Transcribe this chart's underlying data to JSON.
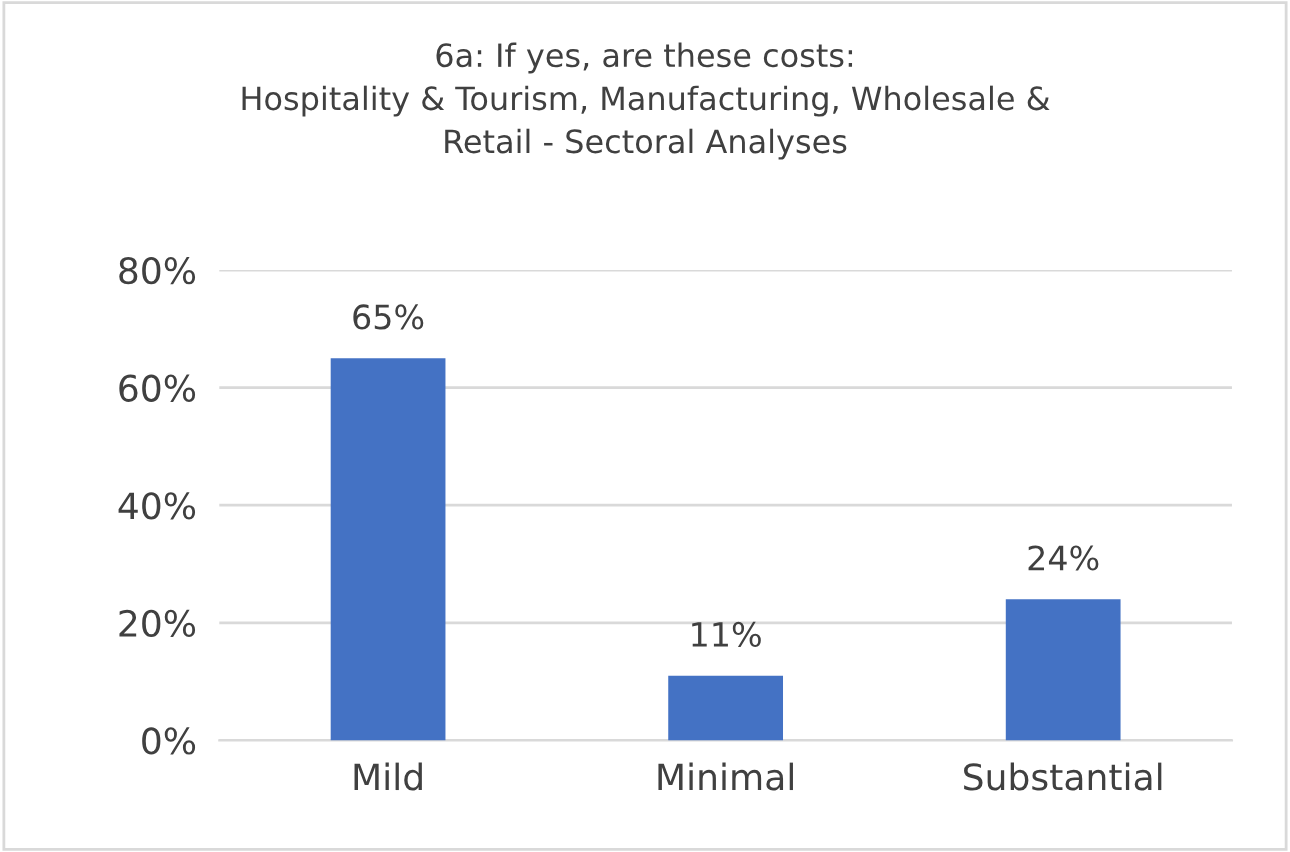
{
  "chart_data": {
    "type": "bar",
    "title": "6a: If yes, are these costs:\nHospitality & Tourism, Manufacturing, Wholesale &\nRetail - Sectoral Analyses",
    "categories": [
      "Mild",
      "Minimal",
      "Substantial"
    ],
    "values": [
      65,
      11,
      24
    ],
    "color": "#4472c4",
    "value_labels": [
      "65%",
      "11%",
      "24%"
    ],
    "ylim": [
      0,
      80
    ],
    "yticks": [
      {
        "value": 0,
        "label": "0%"
      },
      {
        "value": 20,
        "label": "20%"
      },
      {
        "value": 40,
        "label": "40%"
      },
      {
        "value": 60,
        "label": "60%"
      },
      {
        "value": 80,
        "label": "80%"
      }
    ],
    "grid": "y"
  }
}
